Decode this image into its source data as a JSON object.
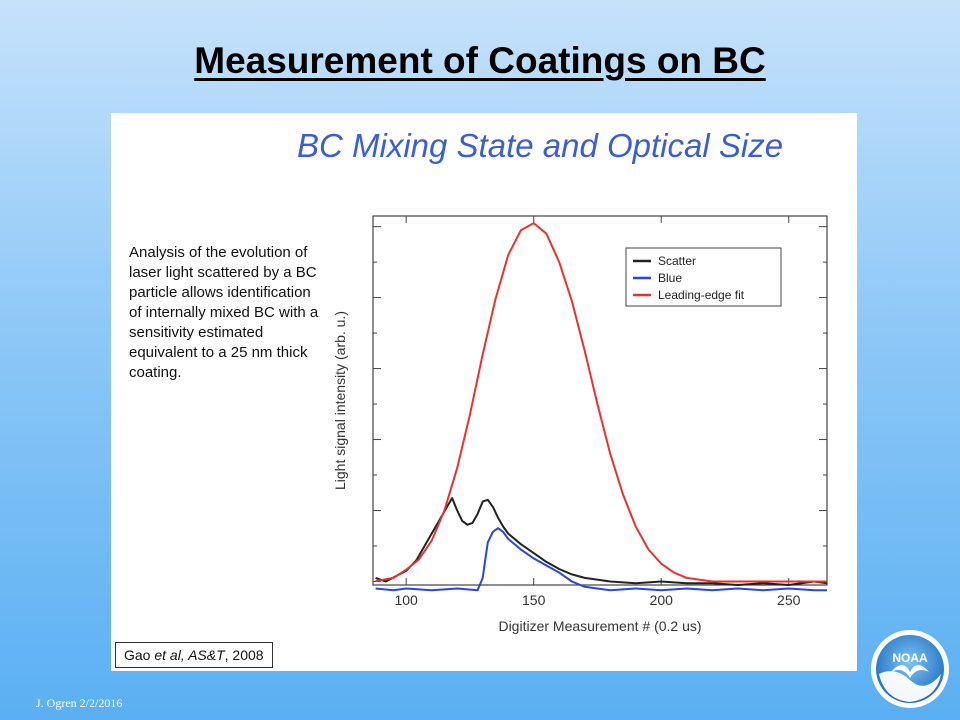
{
  "slide": {
    "title": "Measurement of Coatings on BC",
    "figure_title": "BC Mixing State and Optical Size",
    "description": "Analysis of the evolution of laser light scattered by a BC particle allows identification of internally mixed BC with a sensitivity estimated equivalent to a 25 nm thick coating.",
    "citation": {
      "author": "Gao ",
      "journal": "et al, AS&T",
      "year": ", 2008"
    },
    "footer": "J. Ogren  2/2/2016",
    "logo_text": "NOAA"
  },
  "chart_data": {
    "type": "line",
    "title": "",
    "xlabel": "Digitizer Measurement # (0.2 us)",
    "ylabel": "Light  signal intensity (arb. u.)",
    "xlim": [
      87,
      265
    ],
    "ylim": [
      -0.1,
      10.3
    ],
    "xticks": [
      100,
      150,
      200,
      250
    ],
    "show_y_tick_labels": false,
    "grid": false,
    "legend": "top-right",
    "series": [
      {
        "name": "Scatter",
        "color": "#222222",
        "x": [
          88,
          92,
          96,
          100,
          104,
          108,
          112,
          116,
          118,
          120,
          122,
          124,
          126,
          128,
          130,
          132,
          134,
          136,
          138,
          140,
          145,
          150,
          155,
          160,
          165,
          170,
          180,
          190,
          200,
          210,
          220,
          230,
          240,
          250,
          260,
          265
        ],
        "y": [
          0.1,
          0.0,
          0.15,
          0.3,
          0.6,
          1.1,
          1.6,
          2.1,
          2.35,
          2.0,
          1.7,
          1.6,
          1.65,
          1.9,
          2.25,
          2.3,
          2.1,
          1.8,
          1.55,
          1.35,
          1.05,
          0.8,
          0.55,
          0.35,
          0.2,
          0.1,
          0.0,
          -0.05,
          0.0,
          -0.05,
          -0.05,
          -0.1,
          -0.05,
          -0.1,
          0.0,
          -0.05
        ]
      },
      {
        "name": "Blue",
        "color": "#2746e8",
        "x": [
          88,
          95,
          100,
          110,
          120,
          128,
          130,
          131,
          132,
          134,
          136,
          138,
          140,
          145,
          150,
          155,
          160,
          165,
          170,
          175,
          180,
          190,
          200,
          210,
          220,
          230,
          240,
          250,
          260,
          265
        ],
        "y": [
          -0.2,
          -0.25,
          -0.2,
          -0.25,
          -0.2,
          -0.25,
          0.1,
          0.6,
          1.1,
          1.4,
          1.5,
          1.4,
          1.2,
          0.9,
          0.65,
          0.45,
          0.25,
          0.0,
          -0.15,
          -0.2,
          -0.25,
          -0.2,
          -0.25,
          -0.2,
          -0.25,
          -0.2,
          -0.25,
          -0.2,
          -0.25,
          -0.25
        ]
      },
      {
        "name": "Leading-edge fit",
        "color": "#e8332a",
        "x": [
          88,
          95,
          100,
          105,
          110,
          115,
          120,
          125,
          130,
          135,
          140,
          145,
          150,
          155,
          160,
          165,
          170,
          175,
          180,
          185,
          190,
          195,
          200,
          205,
          210,
          220,
          230,
          240,
          250,
          265
        ],
        "y": [
          0.01,
          0.1,
          0.33,
          0.62,
          1.15,
          2.0,
          3.2,
          4.7,
          6.4,
          7.95,
          9.2,
          9.9,
          10.1,
          9.8,
          9.0,
          7.9,
          6.5,
          5.0,
          3.6,
          2.45,
          1.55,
          0.9,
          0.5,
          0.25,
          0.1,
          0.0,
          0.0,
          0.0,
          0.0,
          0.0
        ]
      }
    ]
  }
}
